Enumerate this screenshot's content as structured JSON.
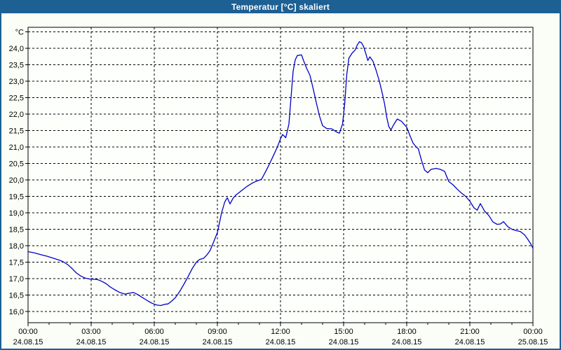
{
  "title_bar": {
    "title": "Temperatur [°C] skaliert"
  },
  "colors": {
    "frame": "#1D6094",
    "line": "#0000C8",
    "page_background": "#FBFEF7",
    "plot_background": "#FDFFFB",
    "grid": "#000000",
    "text": "#000000",
    "title_text": "#FFFFFF"
  },
  "chart_data": {
    "type": "line",
    "title": "Temperatur [°C] skaliert",
    "ylabel": "°C",
    "xlabel": "",
    "grid": true,
    "legend": false,
    "ylim": [
      15.65,
      24.65
    ],
    "x_hours_range": [
      0,
      24
    ],
    "y_tick_step": 0.5,
    "minor_x_tick_every_hours": 1,
    "y_ticks": [
      {
        "value": 24.5,
        "label": "°C"
      },
      {
        "value": 24.0,
        "label": "24,0"
      },
      {
        "value": 23.5,
        "label": "23,5"
      },
      {
        "value": 23.0,
        "label": "23,0"
      },
      {
        "value": 22.5,
        "label": "22,5"
      },
      {
        "value": 22.0,
        "label": "22,0"
      },
      {
        "value": 21.5,
        "label": "21,5"
      },
      {
        "value": 21.0,
        "label": "21,0"
      },
      {
        "value": 20.5,
        "label": "20,5"
      },
      {
        "value": 20.0,
        "label": "20,0"
      },
      {
        "value": 19.5,
        "label": "19,5"
      },
      {
        "value": 19.0,
        "label": "19,0"
      },
      {
        "value": 18.5,
        "label": "18,5"
      },
      {
        "value": 18.0,
        "label": "18,0"
      },
      {
        "value": 17.5,
        "label": "17,5"
      },
      {
        "value": 17.0,
        "label": "17,0"
      },
      {
        "value": 16.5,
        "label": "16,5"
      },
      {
        "value": 16.0,
        "label": "16,0"
      }
    ],
    "x_ticks": [
      {
        "hour": 0,
        "time": "00:00",
        "date": "24.08.15"
      },
      {
        "hour": 3,
        "time": "03:00",
        "date": "24.08.15"
      },
      {
        "hour": 6,
        "time": "06:00",
        "date": "24.08.15"
      },
      {
        "hour": 9,
        "time": "09:00",
        "date": "24.08.15"
      },
      {
        "hour": 12,
        "time": "12:00",
        "date": "24.08.15"
      },
      {
        "hour": 15,
        "time": "15:00",
        "date": "24.08.15"
      },
      {
        "hour": 18,
        "time": "18:00",
        "date": "24.08.15"
      },
      {
        "hour": 21,
        "time": "21:00",
        "date": "24.08.15"
      },
      {
        "hour": 24,
        "time": "00:00",
        "date": "25.08.15"
      }
    ],
    "series": [
      {
        "name": "Temperatur [°C]",
        "color": "#0000C8",
        "points": [
          [
            0,
            17.82
          ],
          [
            0.3,
            17.78
          ],
          [
            0.6,
            17.73
          ],
          [
            0.9,
            17.68
          ],
          [
            1.2,
            17.62
          ],
          [
            1.5,
            17.56
          ],
          [
            1.7,
            17.5
          ],
          [
            1.9,
            17.42
          ],
          [
            2.1,
            17.3
          ],
          [
            2.3,
            17.17
          ],
          [
            2.5,
            17.08
          ],
          [
            2.7,
            17.02
          ],
          [
            2.9,
            16.99
          ],
          [
            3.1,
            16.98
          ],
          [
            3.3,
            16.97
          ],
          [
            3.5,
            16.92
          ],
          [
            3.7,
            16.85
          ],
          [
            3.9,
            16.75
          ],
          [
            4.1,
            16.67
          ],
          [
            4.35,
            16.58
          ],
          [
            4.6,
            16.53
          ],
          [
            4.85,
            16.56
          ],
          [
            5.0,
            16.58
          ],
          [
            5.2,
            16.52
          ],
          [
            5.45,
            16.42
          ],
          [
            5.7,
            16.32
          ],
          [
            5.9,
            16.25
          ],
          [
            6.1,
            16.2
          ],
          [
            6.3,
            16.18
          ],
          [
            6.5,
            16.22
          ],
          [
            6.65,
            16.23
          ],
          [
            6.8,
            16.3
          ],
          [
            7.0,
            16.42
          ],
          [
            7.2,
            16.6
          ],
          [
            7.4,
            16.82
          ],
          [
            7.6,
            17.05
          ],
          [
            7.8,
            17.3
          ],
          [
            8.0,
            17.5
          ],
          [
            8.15,
            17.58
          ],
          [
            8.35,
            17.62
          ],
          [
            8.5,
            17.72
          ],
          [
            8.65,
            17.85
          ],
          [
            8.8,
            18.08
          ],
          [
            9.0,
            18.4
          ],
          [
            9.2,
            19.0
          ],
          [
            9.35,
            19.33
          ],
          [
            9.47,
            19.46
          ],
          [
            9.6,
            19.27
          ],
          [
            9.75,
            19.45
          ],
          [
            9.9,
            19.55
          ],
          [
            10.1,
            19.65
          ],
          [
            10.4,
            19.8
          ],
          [
            10.7,
            19.92
          ],
          [
            10.9,
            19.97
          ],
          [
            11.1,
            20.02
          ],
          [
            11.25,
            20.2
          ],
          [
            11.45,
            20.45
          ],
          [
            11.65,
            20.72
          ],
          [
            11.85,
            21.0
          ],
          [
            12.0,
            21.25
          ],
          [
            12.1,
            21.38
          ],
          [
            12.25,
            21.28
          ],
          [
            12.4,
            21.7
          ],
          [
            12.5,
            22.5
          ],
          [
            12.6,
            23.3
          ],
          [
            12.7,
            23.65
          ],
          [
            12.8,
            23.78
          ],
          [
            13.0,
            23.8
          ],
          [
            13.1,
            23.62
          ],
          [
            13.25,
            23.38
          ],
          [
            13.4,
            23.18
          ],
          [
            13.55,
            22.78
          ],
          [
            13.7,
            22.35
          ],
          [
            13.85,
            21.95
          ],
          [
            14.0,
            21.65
          ],
          [
            14.2,
            21.56
          ],
          [
            14.45,
            21.55
          ],
          [
            14.65,
            21.46
          ],
          [
            14.8,
            21.42
          ],
          [
            14.95,
            21.7
          ],
          [
            15.05,
            22.3
          ],
          [
            15.15,
            23.2
          ],
          [
            15.25,
            23.7
          ],
          [
            15.4,
            23.85
          ],
          [
            15.55,
            23.95
          ],
          [
            15.65,
            24.1
          ],
          [
            15.75,
            24.2
          ],
          [
            15.85,
            24.17
          ],
          [
            15.95,
            24.05
          ],
          [
            16.05,
            23.85
          ],
          [
            16.15,
            23.63
          ],
          [
            16.25,
            23.74
          ],
          [
            16.4,
            23.6
          ],
          [
            16.55,
            23.32
          ],
          [
            16.7,
            23.0
          ],
          [
            16.85,
            22.6
          ],
          [
            16.95,
            22.3
          ],
          [
            17.05,
            21.9
          ],
          [
            17.15,
            21.62
          ],
          [
            17.25,
            21.52
          ],
          [
            17.4,
            21.7
          ],
          [
            17.55,
            21.85
          ],
          [
            17.75,
            21.78
          ],
          [
            18.0,
            21.6
          ],
          [
            18.15,
            21.35
          ],
          [
            18.3,
            21.12
          ],
          [
            18.45,
            21.0
          ],
          [
            18.55,
            20.95
          ],
          [
            18.7,
            20.6
          ],
          [
            18.85,
            20.3
          ],
          [
            19.0,
            20.22
          ],
          [
            19.15,
            20.32
          ],
          [
            19.4,
            20.35
          ],
          [
            19.6,
            20.32
          ],
          [
            19.8,
            20.26
          ],
          [
            20.0,
            19.95
          ],
          [
            20.2,
            19.85
          ],
          [
            20.4,
            19.72
          ],
          [
            20.6,
            19.6
          ],
          [
            20.8,
            19.5
          ],
          [
            21.0,
            19.35
          ],
          [
            21.2,
            19.15
          ],
          [
            21.35,
            19.08
          ],
          [
            21.5,
            19.28
          ],
          [
            21.7,
            19.05
          ],
          [
            21.9,
            18.92
          ],
          [
            22.1,
            18.72
          ],
          [
            22.3,
            18.65
          ],
          [
            22.45,
            18.66
          ],
          [
            22.6,
            18.73
          ],
          [
            22.8,
            18.58
          ],
          [
            23.0,
            18.5
          ],
          [
            23.2,
            18.46
          ],
          [
            23.4,
            18.43
          ],
          [
            23.6,
            18.33
          ],
          [
            23.75,
            18.2
          ],
          [
            23.9,
            18.05
          ],
          [
            24.0,
            17.92
          ]
        ]
      }
    ]
  }
}
